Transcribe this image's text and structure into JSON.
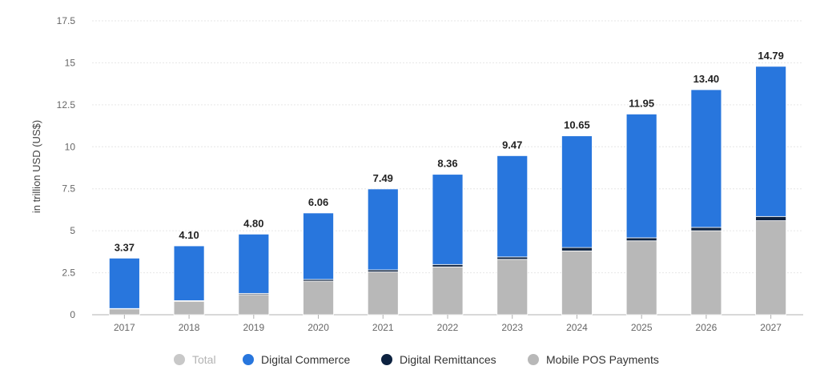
{
  "chart_data": {
    "type": "bar",
    "stacked": true,
    "ylabel": "in trillion USD (US$)",
    "ylim": [
      0,
      17.5
    ],
    "yticks": [
      "0",
      "2.5",
      "5",
      "7.5",
      "10",
      "12.5",
      "15",
      "17.5"
    ],
    "categories": [
      "2017",
      "2018",
      "2019",
      "2020",
      "2021",
      "2022",
      "2023",
      "2024",
      "2025",
      "2026",
      "2027"
    ],
    "totals": [
      3.37,
      4.1,
      4.8,
      6.06,
      7.49,
      8.36,
      9.47,
      10.65,
      11.95,
      13.4,
      14.79
    ],
    "total_labels": [
      "3.37",
      "4.10",
      "4.80",
      "6.06",
      "7.49",
      "8.36",
      "9.47",
      "10.65",
      "11.95",
      "13.40",
      "14.79"
    ],
    "series": [
      {
        "name": "Mobile POS Payments",
        "color": "#b8b8b8",
        "values": [
          0.35,
          0.8,
          1.2,
          2.0,
          2.55,
          2.85,
          3.3,
          3.8,
          4.4,
          5.0,
          5.6
        ]
      },
      {
        "name": "Digital Remittances",
        "color": "#0d2240",
        "values": [
          0.02,
          0.04,
          0.07,
          0.1,
          0.12,
          0.14,
          0.14,
          0.2,
          0.18,
          0.2,
          0.25
        ]
      },
      {
        "name": "Digital Commerce",
        "color": "#2876dd",
        "values": [
          3.0,
          3.26,
          3.53,
          3.96,
          4.82,
          5.37,
          6.03,
          6.65,
          7.37,
          8.2,
          8.94
        ]
      }
    ],
    "grid": true,
    "legend": {
      "position": "bottom",
      "entries": [
        {
          "name": "Total",
          "color": "#c8c8c8",
          "dimmed": true
        },
        {
          "name": "Digital Commerce",
          "color": "#2876dd",
          "dimmed": false
        },
        {
          "name": "Digital Remittances",
          "color": "#0d2240",
          "dimmed": false
        },
        {
          "name": "Mobile POS Payments",
          "color": "#b8b8b8",
          "dimmed": false
        }
      ]
    }
  }
}
